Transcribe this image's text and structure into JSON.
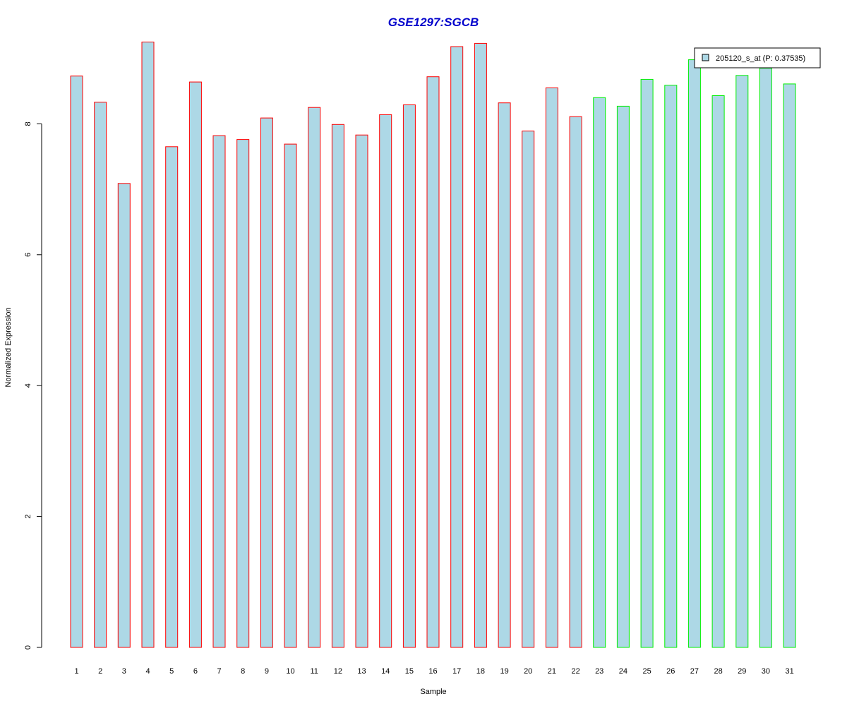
{
  "chart_data": {
    "type": "bar",
    "title": "GSE1297:SGCB",
    "xlabel": "Sample",
    "ylabel": "Normalized Expression",
    "categories": [
      "1",
      "2",
      "3",
      "4",
      "5",
      "6",
      "7",
      "8",
      "9",
      "10",
      "11",
      "12",
      "13",
      "14",
      "15",
      "16",
      "17",
      "18",
      "19",
      "20",
      "21",
      "22",
      "23",
      "24",
      "25",
      "26",
      "27",
      "28",
      "29",
      "30",
      "31"
    ],
    "series": [
      {
        "name": "205120_s_at (P: 0.37535)",
        "values": [
          8.73,
          8.33,
          7.09,
          9.25,
          7.65,
          8.64,
          7.82,
          7.76,
          8.09,
          7.69,
          8.25,
          7.99,
          7.83,
          8.14,
          8.29,
          8.72,
          9.18,
          9.23,
          8.32,
          7.89,
          8.55,
          8.11,
          8.4,
          8.27,
          8.68,
          8.59,
          8.98,
          8.43,
          8.74,
          8.85,
          8.61
        ]
      }
    ],
    "groups": [
      "red",
      "red",
      "red",
      "red",
      "red",
      "red",
      "red",
      "red",
      "red",
      "red",
      "red",
      "red",
      "red",
      "red",
      "red",
      "red",
      "red",
      "red",
      "red",
      "red",
      "red",
      "red",
      "green",
      "green",
      "green",
      "green",
      "green",
      "green",
      "green",
      "green",
      "green"
    ],
    "yticks": [
      0,
      2,
      4,
      6,
      8
    ],
    "ylim": [
      0,
      9.25
    ],
    "grid": false,
    "legend_position": "top-right",
    "colors": {
      "fill": "#add8e6",
      "border_group1": "#ff0000",
      "border_group2": "#00ee00",
      "title": "#0000cc"
    }
  }
}
